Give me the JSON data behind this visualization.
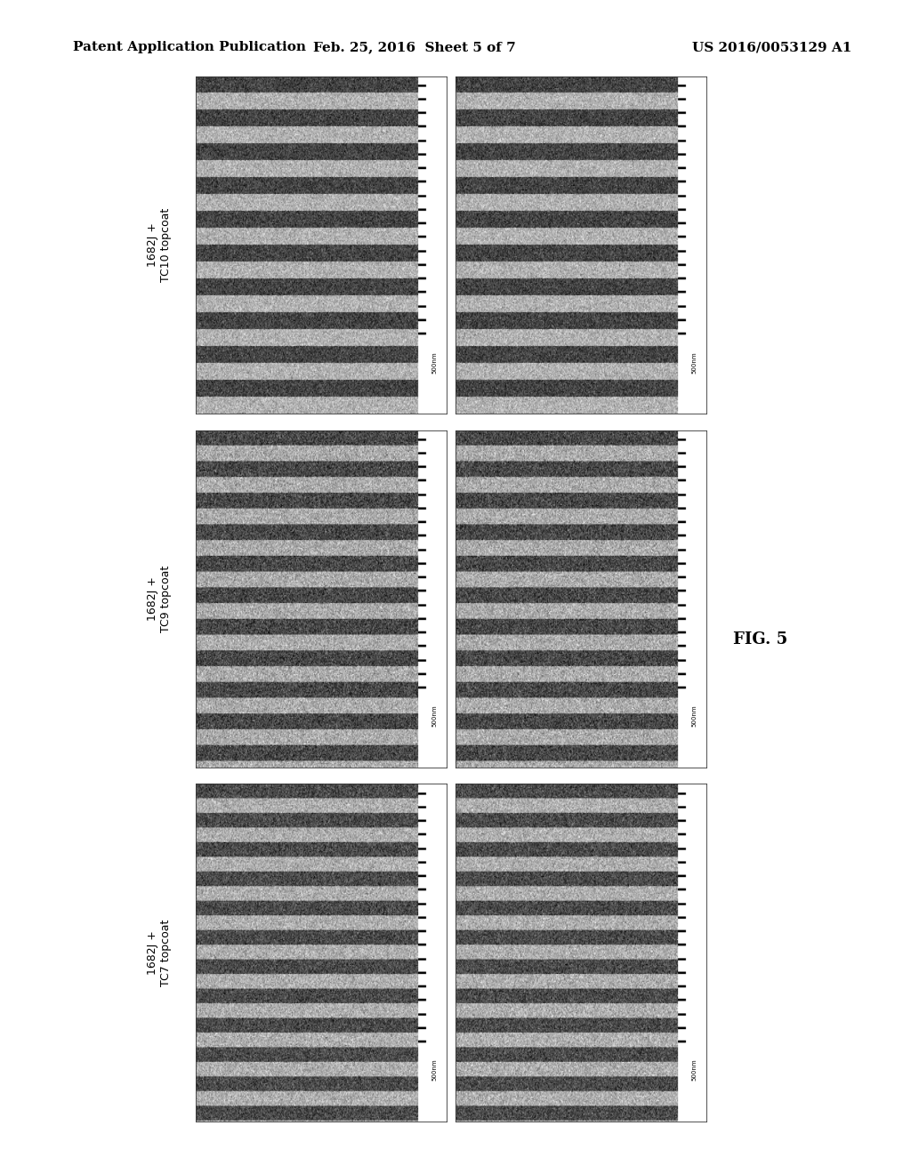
{
  "background_color": "#ffffff",
  "header_left": "Patent Application Publication",
  "header_center": "Feb. 25, 2016  Sheet 5 of 7",
  "header_right": "US 2016/0053129 A1",
  "fig_label": "FIG. 5",
  "row_labels": [
    "1682J +\nTC10 topcoat",
    "1682J +\nTC9 topcoat",
    "1682J +\nTC7 topcoat"
  ],
  "scale_bar_text": "500nm",
  "grid_rows": 3,
  "grid_cols": 2,
  "header_fontsize": 11,
  "row_label_fontsize": 9,
  "fig_label_fontsize": 13
}
